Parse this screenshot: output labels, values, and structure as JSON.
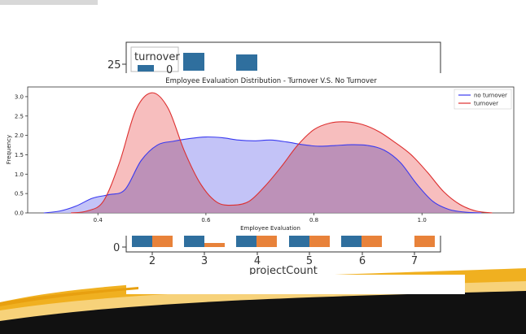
{
  "colors": {
    "no_turnover_line": "#3a3af0",
    "no_turnover_fill": "#b9b9f6",
    "turnover_line": "#dd2f2f",
    "turnover_fill": "#f4a8a8",
    "overlap_fill": "#c88ac8",
    "bar_blue": "#2f6f9e",
    "bar_orange": "#e8823a",
    "swoosh_gold": "#f0b020",
    "swoosh_dark": "#111111"
  },
  "chart_data": [
    {
      "type": "area",
      "title": "Employee Evaluation Distribution - Turnover V.S. No Turnover",
      "xlabel": "Employee Evaluation",
      "ylabel": "Frequency",
      "xlim": [
        0.27,
        1.17
      ],
      "ylim": [
        0,
        3.25
      ],
      "xticks": [
        "0.4",
        "0.6",
        "0.8",
        "1.0"
      ],
      "yticks": [
        "0.0",
        "0.5",
        "1.0",
        "1.5",
        "2.0",
        "2.5",
        "3.0"
      ],
      "grid": false,
      "legend_position": "top-right",
      "series": [
        {
          "name": "no turnover",
          "x": [
            0.3,
            0.33,
            0.36,
            0.39,
            0.42,
            0.45,
            0.48,
            0.51,
            0.54,
            0.57,
            0.6,
            0.63,
            0.66,
            0.69,
            0.72,
            0.75,
            0.78,
            0.81,
            0.84,
            0.87,
            0.9,
            0.93,
            0.96,
            0.99,
            1.02,
            1.05,
            1.08,
            1.11
          ],
          "values": [
            0.0,
            0.05,
            0.18,
            0.38,
            0.47,
            0.6,
            1.35,
            1.75,
            1.85,
            1.92,
            1.96,
            1.94,
            1.88,
            1.86,
            1.88,
            1.83,
            1.76,
            1.72,
            1.74,
            1.76,
            1.74,
            1.62,
            1.3,
            0.75,
            0.3,
            0.09,
            0.02,
            0.0
          ]
        },
        {
          "name": "turnover",
          "x": [
            0.35,
            0.38,
            0.41,
            0.44,
            0.47,
            0.5,
            0.53,
            0.56,
            0.59,
            0.62,
            0.65,
            0.68,
            0.71,
            0.74,
            0.77,
            0.8,
            0.83,
            0.86,
            0.89,
            0.92,
            0.95,
            0.98,
            1.01,
            1.04,
            1.07,
            1.1,
            1.13
          ],
          "values": [
            0.0,
            0.05,
            0.3,
            1.3,
            2.65,
            3.1,
            2.7,
            1.6,
            0.75,
            0.28,
            0.2,
            0.3,
            0.7,
            1.2,
            1.75,
            2.15,
            2.32,
            2.35,
            2.28,
            2.1,
            1.82,
            1.5,
            1.05,
            0.55,
            0.22,
            0.05,
            0.0
          ]
        }
      ]
    },
    {
      "type": "bar",
      "xlabel": "projectCount",
      "categories": [
        "2",
        "3",
        "4",
        "5",
        "6",
        "7"
      ],
      "ytick_labels": [
        "25",
        "0"
      ],
      "legend_title": "turnover",
      "legend_visible_entry": "0"
    }
  ]
}
